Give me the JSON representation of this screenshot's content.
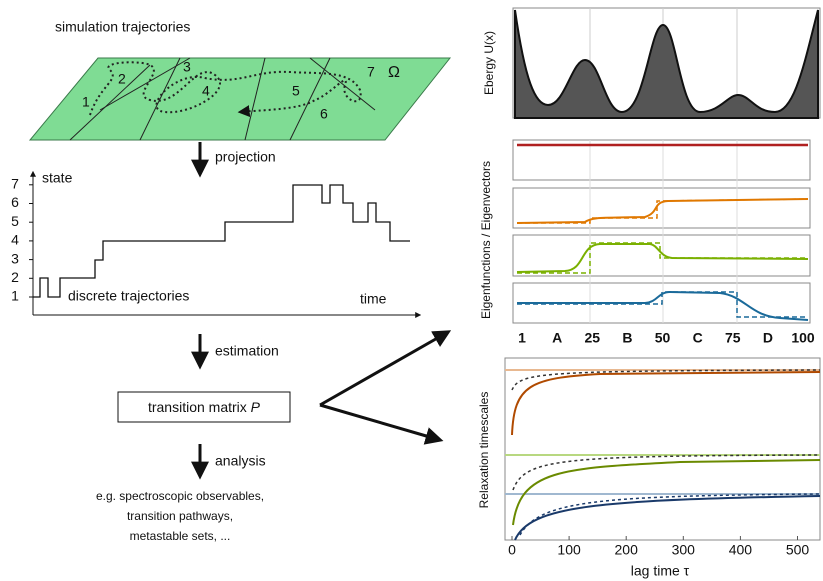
{
  "left": {
    "title": "simulation trajectories",
    "omega": "Ω",
    "state_numbers": [
      "1",
      "2",
      "3",
      "4",
      "5",
      "6",
      "7"
    ],
    "steps": [
      "projection",
      "estimation",
      "analysis"
    ],
    "plot": {
      "y_label": "state",
      "x_label": "time",
      "yticks": [
        1,
        2,
        3,
        4,
        5,
        6,
        7
      ],
      "caption": "discrete trajectories"
    },
    "box": {
      "prefix": "transition matrix",
      "symbol": "P"
    },
    "analysis_text": [
      "e.g. spectroscopic observables,",
      "transition pathways,",
      "metastable sets, ..."
    ]
  },
  "right": {
    "energy": {
      "y_label": "Ebergy U(x)"
    },
    "eigen": {
      "y_label": "Eigenfunctions / Eigenvectors",
      "x_labels": [
        "1",
        "A",
        "25",
        "B",
        "50",
        "C",
        "75",
        "D",
        "100"
      ]
    },
    "relax": {
      "y_label": "Relaxation timescales",
      "x_label": "lag time τ",
      "xticks": [
        0,
        100,
        200,
        300,
        400,
        500
      ]
    }
  }
}
